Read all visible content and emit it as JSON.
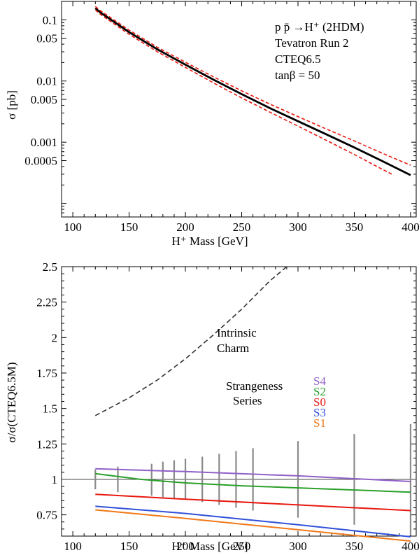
{
  "chart_data": [
    {
      "type": "line",
      "xlabel": "H⁺ Mass [GeV]",
      "ylabel": "σ [pb]",
      "xlim": [
        90,
        405
      ],
      "ylim": [
        6e-05,
        0.2
      ],
      "yscale": "log",
      "x_ticks": [
        100,
        150,
        200,
        250,
        300,
        350,
        400
      ],
      "y_ticks": [
        0.1,
        0.05,
        0.01,
        0.005,
        0.001,
        0.0005
      ],
      "y_tick_labels": [
        "0.1",
        "0.05",
        "0.01",
        "0.005",
        "0.001",
        "0.0005"
      ],
      "annotations": [
        "p p̄ →H⁺ (2HDM)",
        "Tevatron Run 2",
        "CTEQ6.5",
        "tanβ = 50"
      ],
      "series": [
        {
          "style": "solid",
          "color": "#000000",
          "x": [
            120,
            125,
            150,
            175,
            200,
            225,
            250,
            275,
            300,
            325,
            350,
            375,
            400
          ],
          "y": [
            0.155,
            0.13,
            0.063,
            0.033,
            0.0185,
            0.0105,
            0.0061,
            0.0036,
            0.0022,
            0.00135,
            0.00082,
            0.00049,
            0.00029
          ]
        },
        {
          "style": "dashed",
          "color": "#e8180f",
          "x": [
            120,
            125,
            150,
            175,
            200,
            225,
            250,
            275,
            300,
            325,
            350,
            375,
            400
          ],
          "y": [
            0.165,
            0.139,
            0.068,
            0.0357,
            0.0203,
            0.0117,
            0.0069,
            0.0042,
            0.00262,
            0.00165,
            0.00105,
            0.00066,
            0.00042
          ]
        },
        {
          "style": "dashed",
          "color": "#e8180f",
          "x": [
            120,
            125,
            150,
            175,
            200,
            225,
            250,
            275,
            300,
            325,
            350,
            375,
            385
          ],
          "y": [
            0.145,
            0.121,
            0.058,
            0.0302,
            0.0167,
            0.0093,
            0.0053,
            0.0031,
            0.00183,
            0.00108,
            0.00063,
            0.00036,
            0.00029
          ]
        }
      ]
    },
    {
      "type": "line",
      "xlabel": "H⁺ Mass [GeV]",
      "ylabel": "σ/σ(CTEQ6.5M)",
      "xlim": [
        90,
        405
      ],
      "ylim": [
        0.6,
        2.5
      ],
      "x_ticks": [
        100,
        150,
        200,
        250,
        300,
        350,
        400
      ],
      "y_ticks": [
        0.75,
        1,
        1.25,
        1.5,
        1.75,
        2,
        2.25,
        2.5
      ],
      "y_tick_labels": [
        "0.75",
        "1",
        "1.25",
        "1.5",
        "1.75",
        "2",
        "2.25",
        "2.5"
      ],
      "annotations": {
        "charm": [
          "Intrinsic",
          "Charm"
        ],
        "strange": [
          "Strangeness",
          "Series"
        ]
      },
      "legend": [
        {
          "label": "S4",
          "color": "#9060c8"
        },
        {
          "label": "S2",
          "color": "#2aa02a"
        },
        {
          "label": "S0",
          "color": "#e81810"
        },
        {
          "label": "S3",
          "color": "#3050d8"
        },
        {
          "label": "S1",
          "color": "#f07818"
        }
      ],
      "reference_line": 1,
      "series": [
        {
          "name": "S4",
          "color": "#9060c8",
          "x": [
            120,
            200,
            300,
            400
          ],
          "y": [
            1.075,
            1.055,
            1.025,
            0.985
          ]
        },
        {
          "name": "S2",
          "color": "#2aa02a",
          "x": [
            120,
            160,
            200,
            250,
            300,
            350,
            400
          ],
          "y": [
            1.04,
            1.0,
            0.975,
            0.955,
            0.94,
            0.925,
            0.91
          ]
        },
        {
          "name": "S0",
          "color": "#e81810",
          "x": [
            120,
            200,
            300,
            400
          ],
          "y": [
            0.895,
            0.86,
            0.82,
            0.78
          ]
        },
        {
          "name": "S3",
          "color": "#3050d8",
          "x": [
            120,
            200,
            300,
            400
          ],
          "y": [
            0.81,
            0.76,
            0.68,
            0.595
          ]
        },
        {
          "name": "S1",
          "color": "#f07818",
          "x": [
            120,
            200,
            300,
            400
          ],
          "y": [
            0.785,
            0.725,
            0.645,
            0.565
          ]
        },
        {
          "style": "dashed",
          "color": "#333333",
          "x": [
            120,
            150,
            175,
            200,
            225,
            250,
            275,
            290
          ],
          "y": [
            1.45,
            1.575,
            1.7,
            1.85,
            2.02,
            2.2,
            2.4,
            2.5
          ]
        }
      ],
      "error_bars": [
        {
          "x": 120,
          "low": 0.93,
          "high": 1.07
        },
        {
          "x": 140,
          "low": 0.91,
          "high": 1.09
        },
        {
          "x": 170,
          "low": 0.885,
          "high": 1.11
        },
        {
          "x": 180,
          "low": 0.875,
          "high": 1.125
        },
        {
          "x": 190,
          "low": 0.865,
          "high": 1.135
        },
        {
          "x": 200,
          "low": 0.855,
          "high": 1.145
        },
        {
          "x": 215,
          "low": 0.84,
          "high": 1.16
        },
        {
          "x": 230,
          "low": 0.82,
          "high": 1.18
        },
        {
          "x": 245,
          "low": 0.8,
          "high": 1.2
        },
        {
          "x": 260,
          "low": 0.78,
          "high": 1.22
        },
        {
          "x": 300,
          "low": 0.73,
          "high": 1.27
        },
        {
          "x": 350,
          "low": 0.68,
          "high": 1.32
        },
        {
          "x": 400,
          "low": 0.61,
          "high": 1.39
        }
      ]
    }
  ]
}
